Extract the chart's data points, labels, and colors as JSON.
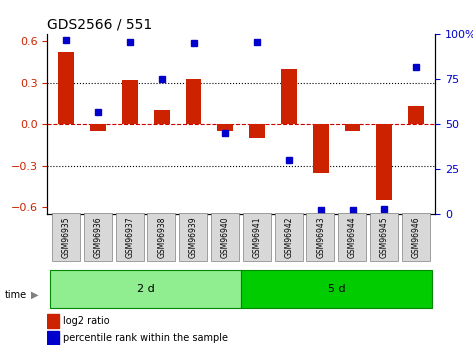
{
  "title": "GDS2566 / 551",
  "samples": [
    "GSM96935",
    "GSM96936",
    "GSM96937",
    "GSM96938",
    "GSM96939",
    "GSM96940",
    "GSM96941",
    "GSM96942",
    "GSM96943",
    "GSM96944",
    "GSM96945",
    "GSM96946"
  ],
  "log2_ratio": [
    0.52,
    -0.05,
    0.32,
    0.1,
    0.33,
    -0.05,
    -0.1,
    0.4,
    -0.35,
    -0.05,
    -0.55,
    0.13
  ],
  "percentile_rank": [
    97,
    57,
    96,
    75,
    95,
    45,
    96,
    30,
    2,
    2,
    3,
    82
  ],
  "groups": [
    {
      "label": "2 d",
      "start": 0,
      "end": 6,
      "color": "#90ee90"
    },
    {
      "label": "5 d",
      "start": 6,
      "end": 12,
      "color": "#00cc00"
    }
  ],
  "ylim": [
    -0.65,
    0.65
  ],
  "yticks_left": [
    -0.6,
    -0.3,
    0.0,
    0.3,
    0.6
  ],
  "yticks_right": [
    0,
    25,
    50,
    75,
    100
  ],
  "bar_color": "#cc2200",
  "dot_color": "#0000cc",
  "hline_color": "#cc0000",
  "grid_color": "#000000",
  "time_label": "time",
  "legend_bar": "log2 ratio",
  "legend_dot": "percentile rank within the sample",
  "bar_width": 0.5
}
